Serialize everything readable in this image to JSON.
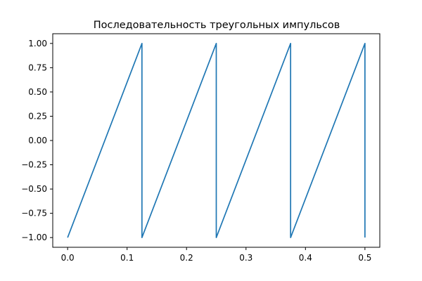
{
  "chart_data": {
    "type": "line",
    "title": "Последовательность треугольных импульсов",
    "xlabel": "",
    "ylabel": "",
    "xlim": [
      -0.025,
      0.525
    ],
    "ylim": [
      -1.1,
      1.1
    ],
    "grid": false,
    "legend": "none",
    "series": [
      {
        "color": "#1f77b4",
        "x": [
          0.0,
          0.125,
          0.125,
          0.25,
          0.25,
          0.375,
          0.375,
          0.5,
          0.5
        ],
        "y": [
          -1.0,
          1.0,
          -1.0,
          1.0,
          -1.0,
          1.0,
          -1.0,
          1.0,
          -1.0
        ]
      }
    ],
    "x_ticks": [
      {
        "value": 0.0,
        "label": "0.0"
      },
      {
        "value": 0.1,
        "label": "0.1"
      },
      {
        "value": 0.2,
        "label": "0.2"
      },
      {
        "value": 0.3,
        "label": "0.3"
      },
      {
        "value": 0.4,
        "label": "0.4"
      },
      {
        "value": 0.5,
        "label": "0.5"
      }
    ],
    "y_ticks": [
      {
        "value": 1.0,
        "label": "1.00"
      },
      {
        "value": 0.75,
        "label": "0.75"
      },
      {
        "value": 0.5,
        "label": "0.50"
      },
      {
        "value": 0.25,
        "label": "0.25"
      },
      {
        "value": 0.0,
        "label": "0.00"
      },
      {
        "value": -0.25,
        "label": "−0.25"
      },
      {
        "value": -0.5,
        "label": "−0.50"
      },
      {
        "value": -0.75,
        "label": "−0.75"
      },
      {
        "value": -1.0,
        "label": "−1.00"
      }
    ]
  }
}
